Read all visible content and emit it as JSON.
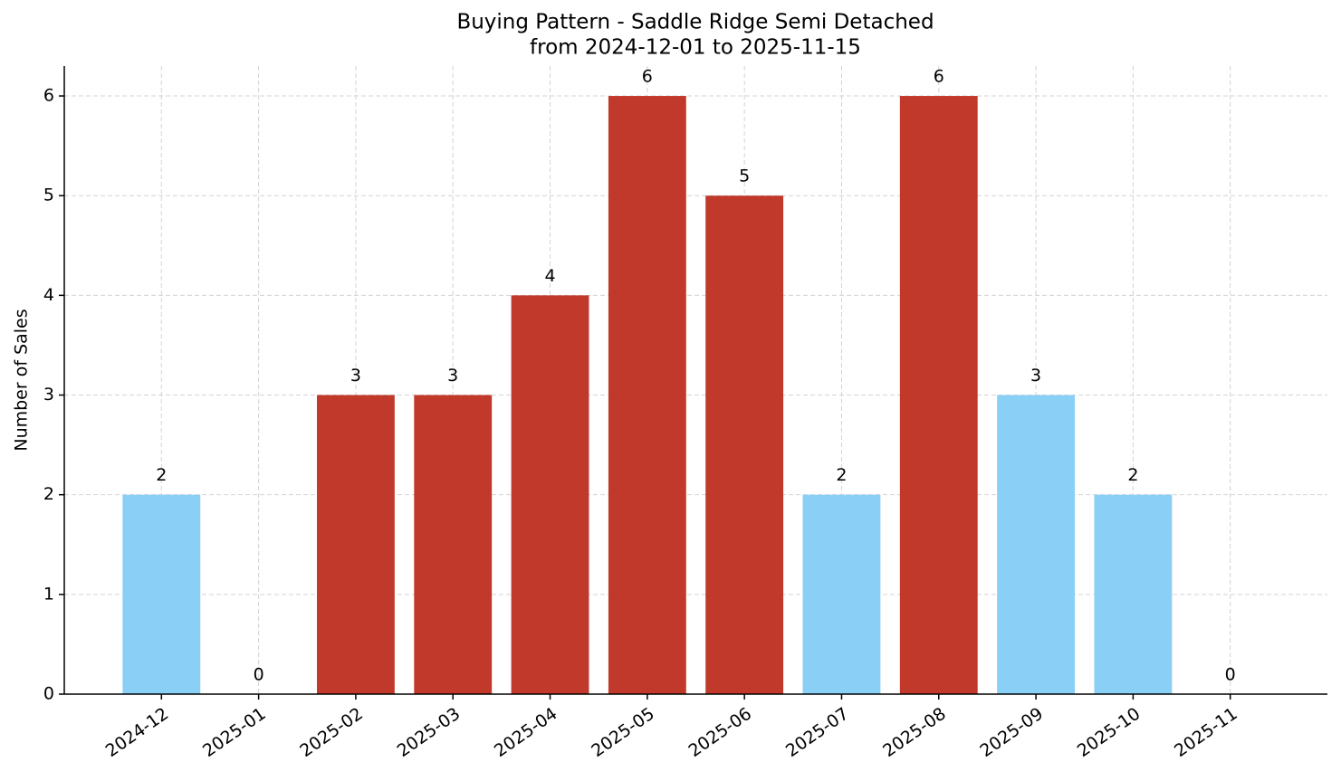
{
  "chart_data": {
    "type": "bar",
    "title": "Buying Pattern - Saddle Ridge Semi Detached",
    "subtitle": "from 2024-12-01 to 2025-11-15",
    "y_label": "Number of Sales",
    "categories": [
      "2024-12",
      "2025-01",
      "2025-02",
      "2025-03",
      "2025-04",
      "2025-05",
      "2025-06",
      "2025-07",
      "2025-08",
      "2025-09",
      "2025-10",
      "2025-11"
    ],
    "values": [
      2,
      0,
      3,
      3,
      4,
      6,
      5,
      2,
      6,
      3,
      2,
      0
    ],
    "colors": [
      "#89cff6",
      "#89cff6",
      "#c0392b",
      "#c0392b",
      "#c0392b",
      "#c0392b",
      "#c0392b",
      "#89cff6",
      "#c0392b",
      "#89cff6",
      "#89cff6",
      "#89cff6"
    ],
    "ylim": [
      0,
      6.3
    ],
    "yticks": [
      0,
      1,
      2,
      3,
      4,
      5,
      6
    ],
    "grid": true
  }
}
